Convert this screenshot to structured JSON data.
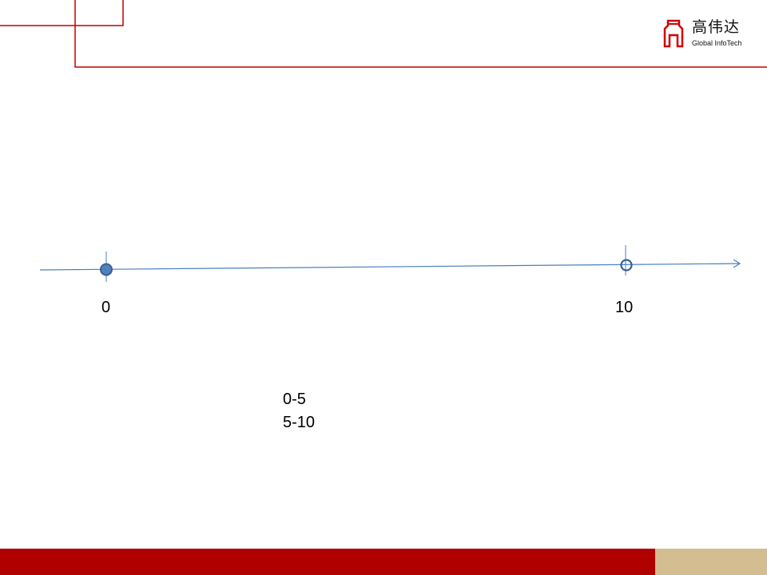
{
  "logo": {
    "chinese": "高伟达",
    "english": "Global InfoTech",
    "icon": "gate-icon"
  },
  "number_line": {
    "points": [
      {
        "value": 0,
        "label": "0",
        "marker": "closed"
      },
      {
        "value": 10,
        "label": "10",
        "marker": "open"
      }
    ]
  },
  "intervals": [
    "0-5",
    "5-10"
  ],
  "colors": {
    "frame": "#c00000",
    "axis": "#4a7fc1",
    "marker": "#3b5f93",
    "footer_red": "#b00000",
    "footer_tan": "#d4bd91"
  }
}
